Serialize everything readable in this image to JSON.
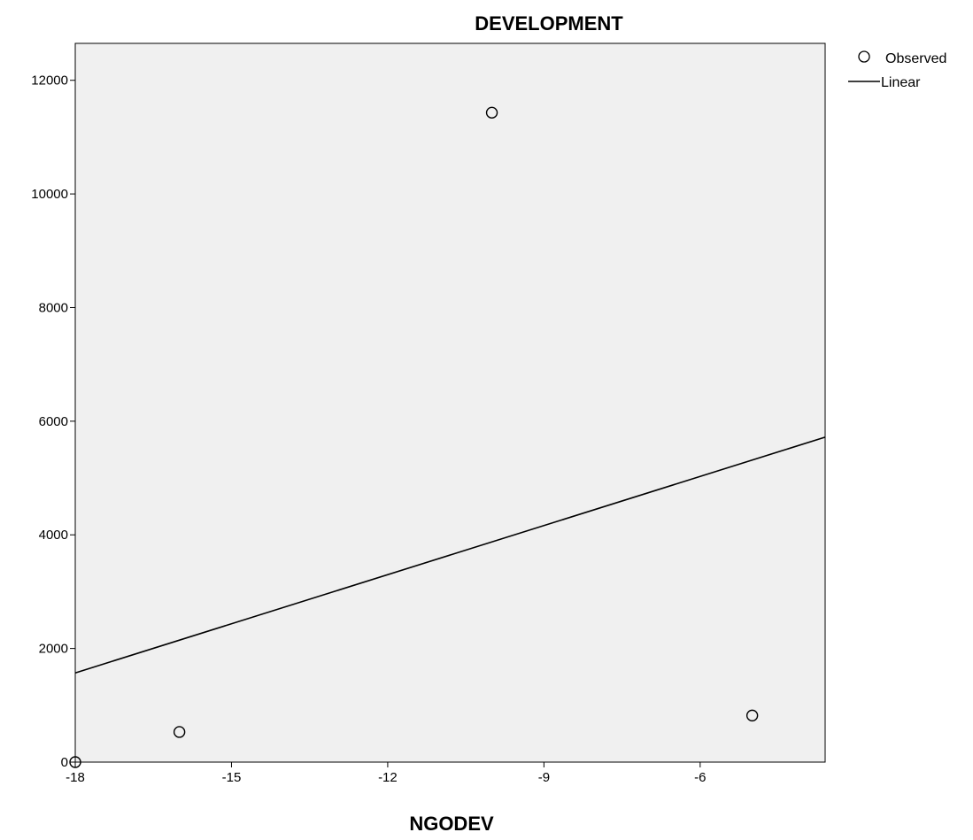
{
  "chart_data": {
    "type": "scatter",
    "title": "DEVELOPMENT",
    "xlabel": "NGODEV",
    "ylabel": "",
    "xlim": [
      -18,
      -3.6
    ],
    "ylim": [
      0,
      12650
    ],
    "x_ticks": [
      -18,
      -15,
      -12,
      -9,
      -6
    ],
    "y_ticks": [
      0,
      2000,
      4000,
      6000,
      8000,
      10000,
      12000
    ],
    "grid": false,
    "legend_position": "top-right",
    "series": [
      {
        "name": "Observed",
        "kind": "points",
        "marker": "open-circle",
        "points": [
          {
            "x": -18,
            "y": 0
          },
          {
            "x": -16,
            "y": 530
          },
          {
            "x": -10,
            "y": 11430
          },
          {
            "x": -5,
            "y": 820
          }
        ]
      },
      {
        "name": "Linear",
        "kind": "line",
        "from": {
          "x": -18,
          "y": 1570
        },
        "to": {
          "x": -3.6,
          "y": 5720
        }
      }
    ]
  }
}
